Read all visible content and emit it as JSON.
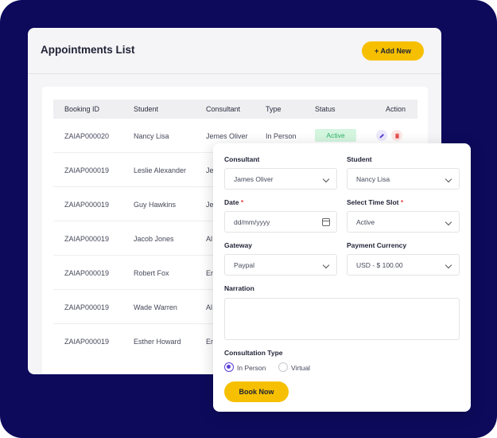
{
  "list": {
    "title": "Appointments List",
    "add_button_label": "+ Add New",
    "columns": [
      "Booking ID",
      "Student",
      "Consultant",
      "Type",
      "Status",
      "Action"
    ],
    "rows": [
      {
        "booking_id": "ZAIAP000020",
        "student": "Nancy Lisa",
        "consultant": "Jemes Oliver",
        "type": "In Person",
        "status": "Active"
      },
      {
        "booking_id": "ZAIAP000019",
        "student": "Leslie Alexander",
        "consultant": "Je"
      },
      {
        "booking_id": "ZAIAP000019",
        "student": "Guy Hawkins",
        "consultant": "Je"
      },
      {
        "booking_id": "ZAIAP000019",
        "student": "Jacob Jones",
        "consultant": "Al"
      },
      {
        "booking_id": "ZAIAP000019",
        "student": "Robert Fox",
        "consultant": "Er"
      },
      {
        "booking_id": "ZAIAP000019",
        "student": "Wade Warren",
        "consultant": "Al"
      },
      {
        "booking_id": "ZAIAP000019",
        "student": "Esther Howard",
        "consultant": "Er"
      }
    ],
    "action_icons": [
      "edit-icon",
      "delete-icon"
    ]
  },
  "form": {
    "consultant_label": "Consultant",
    "consultant_value": "James Oliver",
    "student_label": "Student",
    "student_value": "Nancy Lisa",
    "date_label": "Date",
    "date_placeholder": "dd/mm/yyyy",
    "time_slot_label": "Select Time Slot",
    "time_slot_value": "Active",
    "required_mark": "*",
    "gateway_label": "Gateway",
    "gateway_value": "Paypal",
    "currency_label": "Payment Currency",
    "currency_value": "USD - $ 100.00",
    "narration_label": "Narration",
    "consultation_type_label": "Consultation Type",
    "consultation_options": [
      {
        "label": "In Person",
        "selected": true
      },
      {
        "label": "Virtual",
        "selected": false
      }
    ],
    "book_button_label": "Book Now"
  },
  "colors": {
    "background": "#0d0a5c",
    "accent": "#f6c000",
    "primary": "#5b3fd8",
    "status_active_bg": "#d4f5df",
    "status_active_text": "#2fb36a",
    "danger": "#e34848"
  }
}
